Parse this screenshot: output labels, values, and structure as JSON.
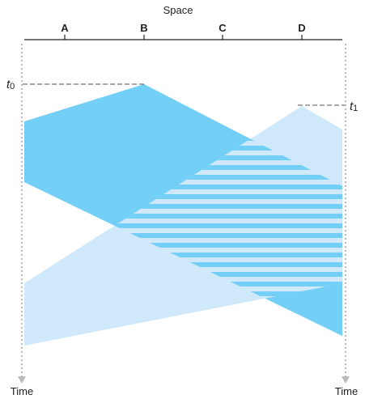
{
  "diagram": {
    "top_label": "Space",
    "nodes": [
      "A",
      "B",
      "C",
      "D"
    ],
    "bottom_left_label": "Time",
    "bottom_right_label": "Time",
    "t0": {
      "symbol": "t",
      "subscript": "0"
    },
    "t1": {
      "symbol": "t",
      "subscript": "1"
    },
    "colors": {
      "signal_dark": "#74cff6",
      "signal_light": "#cfe9fb",
      "axis": "#222222",
      "timeline": "#bbbbbb",
      "dashed": "#555555"
    }
  }
}
